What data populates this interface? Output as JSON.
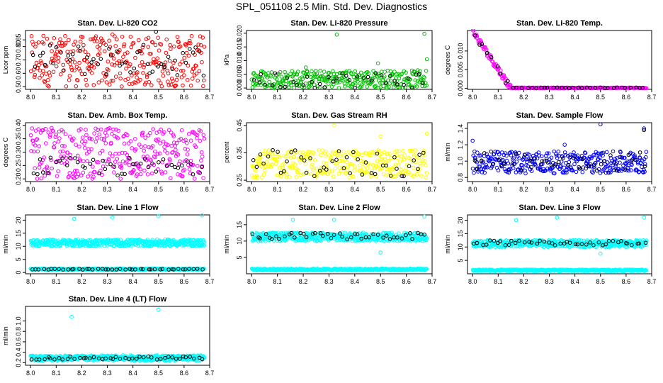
{
  "page": {
    "title": "SPL_051108  2.5 Min. Std. Dev. Diagnostics"
  },
  "chart_data": [
    {
      "type": "scatter",
      "title": "Stan. Dev. Li-820 CO2",
      "ylabel": "Licor ppm",
      "xlim": [
        7.98,
        8.7
      ],
      "ylim": [
        0.48,
        0.92
      ],
      "xticks": [
        "8.0",
        "8.1",
        "8.2",
        "8.3",
        "8.4",
        "8.5",
        "8.6",
        "8.7"
      ],
      "yticks": [
        {
          "v": 0.5,
          "label": "0.50"
        },
        {
          "v": 0.6,
          "label": "0.60"
        },
        {
          "v": 0.7,
          "label": "0.70"
        },
        {
          "v": 0.8,
          "label": "0.80"
        },
        {
          "v": 0.85,
          "label": "0.85"
        }
      ],
      "series": [
        {
          "color": "#ff0000",
          "x_range": [
            8.0,
            8.68
          ],
          "count": 300,
          "band": [
            0.5,
            0.88
          ],
          "outliers": [
            [
              8.05,
              0.88
            ],
            [
              8.32,
              0.89
            ]
          ]
        },
        {
          "color": "#000000",
          "x_range": [
            8.0,
            8.68
          ],
          "count": 50,
          "band": [
            0.58,
            0.82
          ],
          "outliers": [
            [
              8.49,
              0.91
            ]
          ]
        }
      ]
    },
    {
      "type": "scatter",
      "title": "Stan. Dev. Li-820 Pressure",
      "ylabel": "kPa",
      "xlim": [
        7.98,
        8.7
      ],
      "ylim": [
        -0.0005,
        0.021
      ],
      "xticks": [
        "8.0",
        "8.1",
        "8.2",
        "8.3",
        "8.4",
        "8.5",
        "8.6",
        "8.7"
      ],
      "yticks": [
        {
          "v": 0.0,
          "label": "0.000"
        },
        {
          "v": 0.005,
          "label": "0.005"
        },
        {
          "v": 0.01,
          "label": "0.010"
        },
        {
          "v": 0.015,
          "label": "0.015"
        },
        {
          "v": 0.02,
          "label": "0.020"
        }
      ],
      "series": [
        {
          "color": "#00c000",
          "x_range": [
            8.0,
            8.68
          ],
          "count": 320,
          "band": [
            0.0,
            0.0065
          ],
          "outliers": [
            [
              8.33,
              0.0195
            ],
            [
              8.67,
              0.0198
            ],
            [
              8.68,
              0.0105
            ],
            [
              8.49,
              0.009
            ],
            [
              8.21,
              0.0075
            ]
          ]
        },
        {
          "color": "#000000",
          "x_range": [
            8.0,
            8.68
          ],
          "count": 40,
          "band": [
            0.0,
            0.006
          ],
          "outliers": []
        }
      ]
    },
    {
      "type": "scatter",
      "title": "Stan. Dev. Li-820 Temp.",
      "ylabel": "degrees C",
      "xlim": [
        7.98,
        8.7
      ],
      "ylim": [
        -0.0003,
        0.0155
      ],
      "xticks": [
        "8.0",
        "8.1",
        "8.2",
        "8.3",
        "8.4",
        "8.5",
        "8.6",
        "8.7"
      ],
      "yticks": [
        {
          "v": 0.0,
          "label": "0.000"
        },
        {
          "v": 0.005,
          "label": "0.005"
        },
        {
          "v": 0.01,
          "label": "0.010"
        }
      ],
      "series": [
        {
          "color": "#ff00ff",
          "x_range": [
            8.0,
            8.68
          ],
          "count": 300,
          "decay": {
            "start": 0.0145,
            "end_x": 8.15
          },
          "outliers": []
        },
        {
          "color": "#000000",
          "x_range": [
            8.0,
            8.68
          ],
          "count": 40,
          "decay": {
            "start": 0.0145,
            "end_x": 8.15
          },
          "outliers": []
        }
      ]
    },
    {
      "type": "scatter",
      "title": "Stan. Dev. Amb. Box Temp.",
      "ylabel": "degrees C",
      "xlim": [
        7.98,
        8.7
      ],
      "ylim": [
        0.19,
        0.41
      ],
      "xticks": [
        "8.0",
        "8.1",
        "8.2",
        "8.3",
        "8.4",
        "8.5",
        "8.6",
        "8.7"
      ],
      "yticks": [
        {
          "v": 0.2,
          "label": "0.20"
        },
        {
          "v": 0.25,
          "label": "0.25"
        },
        {
          "v": 0.3,
          "label": "0.30"
        },
        {
          "v": 0.35,
          "label": "0.35"
        },
        {
          "v": 0.4,
          "label": "0.40"
        }
      ],
      "series": [
        {
          "color": "#ff00ff",
          "x_range": [
            8.0,
            8.68
          ],
          "count": 320,
          "band": [
            0.2,
            0.39
          ],
          "outliers": []
        },
        {
          "color": "#000000",
          "x_range": [
            8.0,
            8.68
          ],
          "count": 45,
          "band": [
            0.21,
            0.28
          ],
          "outliers": []
        }
      ]
    },
    {
      "type": "scatter",
      "title": "Stan. Dev. Gas Stream RH",
      "ylabel": "percent",
      "xlim": [
        7.98,
        8.7
      ],
      "ylim": [
        0.245,
        0.46
      ],
      "xticks": [
        "8.0",
        "8.1",
        "8.2",
        "8.3",
        "8.4",
        "8.5",
        "8.6",
        "8.7"
      ],
      "yticks": [
        {
          "v": 0.25,
          "label": "0.25"
        },
        {
          "v": 0.35,
          "label": "0.35"
        },
        {
          "v": 0.45,
          "label": "0.45"
        }
      ],
      "series": [
        {
          "color": "#ffff00",
          "x_range": [
            8.0,
            8.68
          ],
          "count": 320,
          "band": [
            0.26,
            0.36
          ],
          "outliers": [
            [
              8.32,
              0.45
            ],
            [
              8.68,
              0.42
            ],
            [
              8.5,
              0.41
            ]
          ]
        },
        {
          "color": "#000000",
          "x_range": [
            8.0,
            8.68
          ],
          "count": 45,
          "band": [
            0.26,
            0.36
          ],
          "outliers": []
        }
      ]
    },
    {
      "type": "scatter",
      "title": "Stan. Dev. Sample Flow",
      "ylabel": "ml/min",
      "xlim": [
        7.98,
        8.7
      ],
      "ylim": [
        0.75,
        1.47
      ],
      "xticks": [
        "8.0",
        "8.1",
        "8.2",
        "8.3",
        "8.4",
        "8.5",
        "8.6",
        "8.7"
      ],
      "yticks": [
        {
          "v": 0.8,
          "label": "0.8"
        },
        {
          "v": 1.0,
          "label": "1.0"
        },
        {
          "v": 1.2,
          "label": "1.2"
        },
        {
          "v": 1.4,
          "label": "1.4"
        }
      ],
      "series": [
        {
          "color": "#0000ff",
          "x_range": [
            8.0,
            8.68
          ],
          "count": 340,
          "band": [
            0.85,
            1.12
          ],
          "outliers": [
            [
              8.5,
              1.45
            ],
            [
              8.0,
              1.25
            ],
            [
              8.67,
              1.4
            ],
            [
              8.36,
              1.2
            ]
          ]
        },
        {
          "color": "#000000",
          "x_range": [
            8.0,
            8.68
          ],
          "count": 45,
          "band": [
            0.88,
            1.12
          ],
          "outliers": [
            [
              8.67,
              1.38
            ]
          ]
        }
      ]
    },
    {
      "type": "scatter",
      "title": "Stan. Dev. Line 1 Flow",
      "ylabel": "ml/min",
      "xlim": [
        7.98,
        8.7
      ],
      "ylim": [
        -0.5,
        22
      ],
      "xticks": [
        "8.0",
        "8.1",
        "8.2",
        "8.3",
        "8.4",
        "8.5",
        "8.6",
        "8.7"
      ],
      "yticks": [
        {
          "v": 0,
          "label": "0"
        },
        {
          "v": 5,
          "label": "5"
        },
        {
          "v": 10,
          "label": "10"
        },
        {
          "v": 15,
          "label": "15"
        },
        {
          "v": 20,
          "label": "20"
        }
      ],
      "series": [
        {
          "color": "#00ffff",
          "x_range": [
            8.0,
            8.68
          ],
          "count": 450,
          "band": [
            10.0,
            12.6
          ],
          "outliers": [
            [
              8.17,
              20.5
            ],
            [
              8.32,
              21.0
            ],
            [
              8.5,
              21.5
            ],
            [
              8.67,
              21.8
            ]
          ]
        },
        {
          "color": "#00ffff",
          "x_range": [
            8.0,
            8.68
          ],
          "count": 350,
          "band": [
            1.0,
            1.5
          ],
          "outliers": []
        },
        {
          "color": "#000000",
          "x_range": [
            8.0,
            8.68
          ],
          "count": 45,
          "band": [
            1.1,
            1.4
          ],
          "outliers": []
        }
      ]
    },
    {
      "type": "scatter",
      "title": "Stan. Dev. Line 2 Flow",
      "ylabel": "ml/min",
      "xlim": [
        7.98,
        8.7
      ],
      "ylim": [
        0,
        18
      ],
      "xticks": [
        "8.0",
        "8.1",
        "8.2",
        "8.3",
        "8.4",
        "8.5",
        "8.6",
        "8.7"
      ],
      "yticks": [
        {
          "v": 5,
          "label": "5"
        },
        {
          "v": 10,
          "label": "10"
        },
        {
          "v": 15,
          "label": "15"
        }
      ],
      "series": [
        {
          "color": "#00ffff",
          "x_range": [
            8.0,
            8.68
          ],
          "count": 450,
          "band": [
            10.0,
            12.6
          ],
          "outliers": [
            [
              8.16,
              16.5
            ],
            [
              8.32,
              16.5
            ],
            [
              8.5,
              6.5
            ],
            [
              8.67,
              17.5
            ]
          ]
        },
        {
          "color": "#00ffff",
          "x_range": [
            8.0,
            8.68
          ],
          "count": 350,
          "band": [
            1.0,
            1.6
          ],
          "outliers": []
        },
        {
          "color": "#000000",
          "x_range": [
            8.0,
            8.68
          ],
          "count": 45,
          "band": [
            10.5,
            12.5
          ],
          "outliers": []
        }
      ]
    },
    {
      "type": "scatter",
      "title": "Stan. Dev. Line 3 Flow",
      "ylabel": "ml/min",
      "xlim": [
        7.98,
        8.7
      ],
      "ylim": [
        0,
        22
      ],
      "xticks": [
        "8.0",
        "8.1",
        "8.2",
        "8.3",
        "8.4",
        "8.5",
        "8.6",
        "8.7"
      ],
      "yticks": [
        {
          "v": 5,
          "label": "5"
        },
        {
          "v": 10,
          "label": "10"
        },
        {
          "v": 15,
          "label": "15"
        },
        {
          "v": 20,
          "label": "20"
        }
      ],
      "series": [
        {
          "color": "#00ffff",
          "x_range": [
            8.0,
            8.68
          ],
          "count": 450,
          "band": [
            10.0,
            12.6
          ],
          "outliers": [
            [
              8.17,
              20.0
            ],
            [
              8.33,
              21.0
            ],
            [
              8.5,
              7.5
            ],
            [
              8.67,
              21.0
            ]
          ]
        },
        {
          "color": "#00ffff",
          "x_range": [
            8.0,
            8.68
          ],
          "count": 350,
          "band": [
            1.0,
            1.6
          ],
          "outliers": []
        },
        {
          "color": "#000000",
          "x_range": [
            8.0,
            8.68
          ],
          "count": 45,
          "band": [
            10.5,
            12.5
          ],
          "outliers": []
        }
      ]
    },
    {
      "type": "scatter",
      "title": "Stan. Dev. Line 4 (LT) Flow",
      "ylabel": "ml/min",
      "xlim": [
        7.98,
        8.7
      ],
      "ylim": [
        0.15,
        1.28
      ],
      "xticks": [
        "8.0",
        "8.1",
        "8.2",
        "8.3",
        "8.4",
        "8.5",
        "8.6",
        "8.7"
      ],
      "yticks": [
        {
          "v": 0.2,
          "label": "0.2"
        },
        {
          "v": 0.4,
          "label": "0.4"
        },
        {
          "v": 0.6,
          "label": "0.6"
        },
        {
          "v": 0.8,
          "label": "0.8"
        },
        {
          "v": 1.0,
          "label": "1.0"
        }
      ],
      "series": [
        {
          "color": "#00ffff",
          "x_range": [
            8.0,
            8.68
          ],
          "count": 500,
          "band": [
            0.24,
            0.34
          ],
          "outliers": [
            [
              8.16,
              1.08
            ],
            [
              8.5,
              1.22
            ]
          ]
        },
        {
          "color": "#000000",
          "x_range": [
            8.0,
            8.68
          ],
          "count": 45,
          "band": [
            0.26,
            0.32
          ],
          "outliers": []
        }
      ]
    }
  ]
}
